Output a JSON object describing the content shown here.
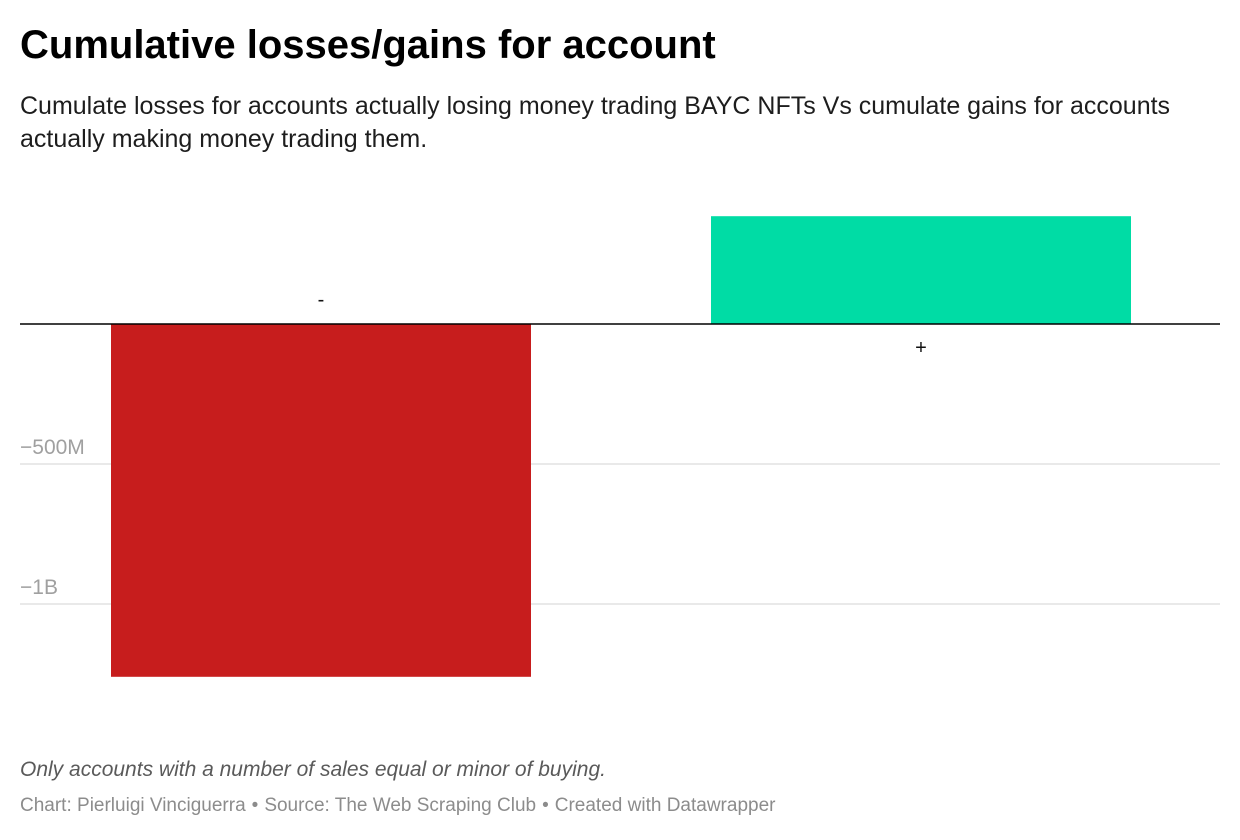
{
  "header": {
    "title": "Cumulative losses/gains for account",
    "subtitle": "Cumulate losses for accounts actually losing money trading BAYC NFTs Vs cumulate gains for accounts actually making money trading them."
  },
  "chart_data": {
    "type": "bar",
    "categories": [
      "-",
      "+"
    ],
    "values": [
      -1260000000,
      385000000
    ],
    "colors": [
      "#c71d1d",
      "#00dca5"
    ],
    "yticks": [
      {
        "value": -500000000,
        "label": "−500M"
      },
      {
        "value": -1000000000,
        "label": "−1B"
      }
    ],
    "ylim": [
      -1350000000,
      450000000
    ],
    "grid": true,
    "legend": "none",
    "xlabel": "",
    "ylabel": ""
  },
  "footer": {
    "note": "Only accounts with a number of sales equal or minor of buying.",
    "credit_chart": "Chart: Pierluigi Vinciguerra",
    "credit_source": "Source: The Web Scraping Club",
    "credit_tool": "Created with Datawrapper",
    "separator": "•"
  }
}
